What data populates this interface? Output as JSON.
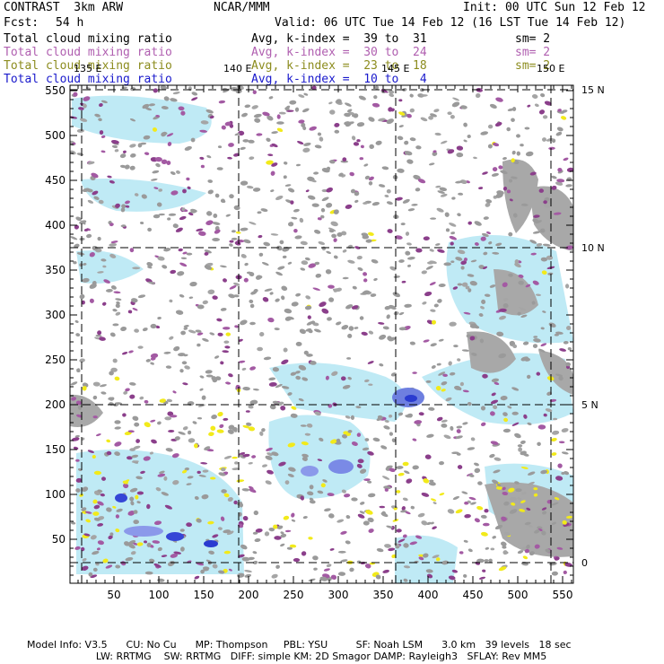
{
  "header": {
    "model": "CONTRAST  3km ARW",
    "center": "NCAR/MMM",
    "init": "Init: 00 UTC Sun 12 Feb 12",
    "fcst_label": "Fcst:",
    "fcst_value": "54 h",
    "valid": "Valid: 06 UTC Tue 14 Feb 12 (16 LST Tue 14 Feb 12)"
  },
  "fields": [
    {
      "name": "Total cloud mixing ratio",
      "range": "Avg, k-index =  39 to  31",
      "sm": "sm= 2",
      "color": "#000000"
    },
    {
      "name": "Total cloud mixing ratio",
      "range": "Avg, k-index =  30 to  24",
      "sm": "sm= 2",
      "color": "#b05fb0"
    },
    {
      "name": "Total cloud mixing ratio",
      "range": "Avg, k-index =  23 to  18",
      "sm": "sm= 2",
      "color": "#8c8c1e"
    },
    {
      "name": "Total cloud mixing ratio",
      "range": "Avg, k-index =  10 to   4",
      "sm": "",
      "color": "#1a1acc"
    }
  ],
  "map": {
    "x_ticks": [
      "50",
      "100",
      "150",
      "200",
      "250",
      "300",
      "350",
      "400",
      "450",
      "500",
      "550"
    ],
    "y_ticks": [
      "50",
      "100",
      "150",
      "200",
      "250",
      "300",
      "350",
      "400",
      "450",
      "500",
      "550"
    ],
    "lon_labels": [
      "135 E",
      "140 E",
      "145 E",
      "150 E"
    ],
    "lat_labels": [
      "15 N",
      "10 N",
      "5 N",
      "0"
    ]
  },
  "footer": {
    "line1": "Model Info: V3.5      CU: No Cu      MP: Thompson     PBL: YSU         SF: Noah LSM      3.0 km   39 levels   18 sec",
    "line2": "                      LW: RRTMG    SW: RRTMG   DIFF: simple KM: 2D Smagor DAMP: Rayleigh3   SFLAY: Rev MM5"
  }
}
